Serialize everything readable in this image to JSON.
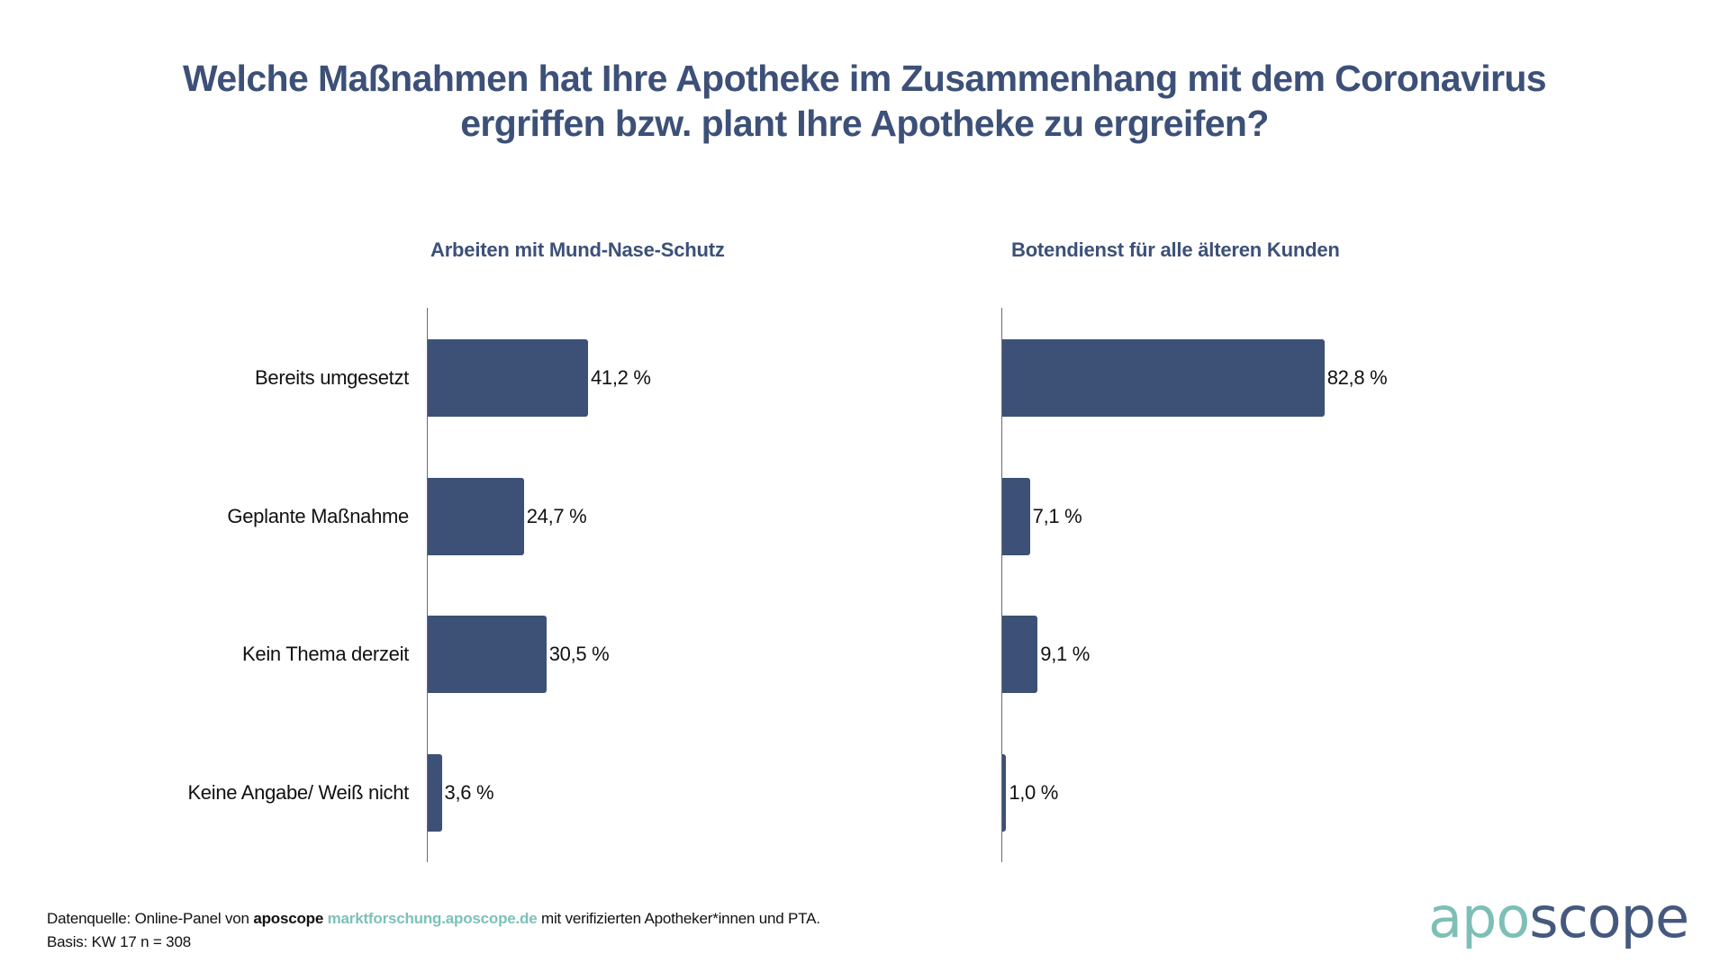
{
  "title": {
    "line1": "Welche Maßnahmen hat Ihre Apotheke im Zusammenhang mit dem Coronavirus",
    "line2": "ergriffen bzw. plant Ihre Apotheke zu ergreifen?"
  },
  "colors": {
    "title": "#3c5078",
    "bar": "#3d5176",
    "logo_teal": "#7dbfb7",
    "logo_navy": "#45597e",
    "link": "#7dc1b8"
  },
  "chart_data": [
    {
      "type": "bar",
      "orientation": "horizontal",
      "title": "Arbeiten mit Mund-Nase-Schutz",
      "categories": [
        "Bereits umgesetzt",
        "Geplante Maßnahme",
        "Kein Thema derzeit",
        "Keine Angabe/ Weiß nicht"
      ],
      "values": [
        41.2,
        24.7,
        30.5,
        3.6
      ],
      "value_labels": [
        "41,2 %",
        "24,7 %",
        "30,5 %",
        "3,6 %"
      ],
      "xlabel": "",
      "ylabel": "",
      "xlim": [
        0,
        100
      ],
      "unit": "%",
      "grid": false,
      "legend": "none"
    },
    {
      "type": "bar",
      "orientation": "horizontal",
      "title": "Botendienst für alle älteren Kunden",
      "categories": [
        "Bereits umgesetzt",
        "Geplante Maßnahme",
        "Kein Thema derzeit",
        "Keine Angabe/ Weiß nicht"
      ],
      "values": [
        82.8,
        7.1,
        9.1,
        1.0
      ],
      "value_labels": [
        "82,8 %",
        "7,1 %",
        "9,1 %",
        "1,0 %"
      ],
      "xlabel": "",
      "ylabel": "",
      "xlim": [
        0,
        100
      ],
      "unit": "%",
      "grid": false,
      "legend": "none"
    }
  ],
  "footer": {
    "source_prefix": "Datenquelle: Online-Panel von ",
    "source_brand": "aposcope",
    "source_link": "marktforschung.aposcope.de",
    "source_suffix": " mit verifizierten Apotheker*innen und PTA.",
    "basis": "Basis: KW 17 n = 308"
  },
  "logo": {
    "part1": "apo",
    "part2": "scope"
  }
}
